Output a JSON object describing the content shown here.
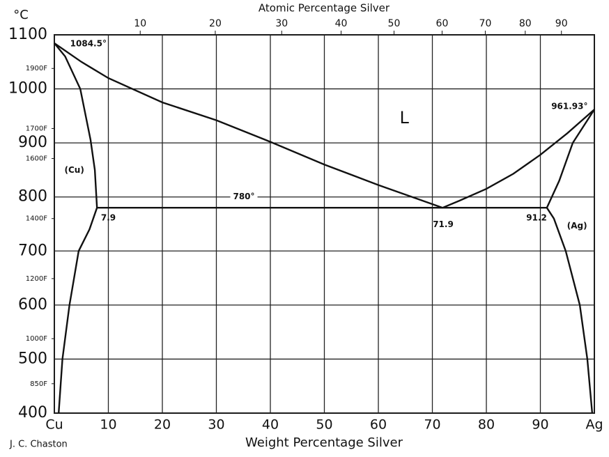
{
  "chart_data": {
    "type": "line",
    "ylabel": "°C",
    "xlabel": "Weight Percentage Silver",
    "x2label": "Atomic Percentage Silver",
    "credit": "J. C. Chaston",
    "xlim": [
      0,
      100
    ],
    "ylim": [
      400,
      1100
    ],
    "grid": true,
    "color": "#111111",
    "xticks": [
      {
        "value": 0,
        "label": "Cu"
      },
      10,
      20,
      30,
      40,
      50,
      60,
      70,
      80,
      90,
      {
        "value": 100,
        "label": "Ag"
      }
    ],
    "x2ticks": [
      {
        "value": 15.9,
        "label": "10"
      },
      {
        "value": 29.8,
        "label": "20"
      },
      {
        "value": 42.1,
        "label": "30"
      },
      {
        "value": 53.1,
        "label": "40"
      },
      {
        "value": 62.9,
        "label": "50"
      },
      {
        "value": 71.8,
        "label": "60"
      },
      {
        "value": 79.8,
        "label": "70"
      },
      {
        "value": 87.2,
        "label": "80"
      },
      {
        "value": 93.9,
        "label": "90"
      }
    ],
    "yticks": [
      400,
      500,
      600,
      700,
      800,
      900,
      1000,
      1100
    ],
    "yticks_fahrenheit": [
      {
        "value": 454.4,
        "label": "850F"
      },
      {
        "value": 537.8,
        "label": "1000F"
      },
      {
        "value": 648.9,
        "label": "1200F"
      },
      {
        "value": 760,
        "label": "1400F"
      },
      {
        "value": 871.1,
        "label": "1600F"
      },
      {
        "value": 926.7,
        "label": "1700F"
      },
      {
        "value": 1037.8,
        "label": "1900F"
      }
    ],
    "series": [
      {
        "x": [
          0,
          5,
          10,
          20,
          30,
          40,
          50,
          60,
          71.9
        ],
        "values": [
          1084.5,
          1050,
          1020,
          975,
          942,
          902,
          860,
          822,
          780
        ]
      },
      {
        "x": [
          71.9,
          75,
          80,
          85,
          90,
          95,
          100
        ],
        "values": [
          780,
          793,
          815,
          843,
          878,
          918,
          961.93
        ]
      },
      {
        "x": [
          0,
          2,
          4.8,
          6.7,
          7.5,
          7.9
        ],
        "values": [
          1084.5,
          1060,
          1000,
          906,
          850,
          780
        ]
      },
      {
        "x": [
          7.9,
          6.5,
          4.5,
          2.8,
          1.5,
          0.8
        ],
        "values": [
          780,
          740,
          700,
          600,
          500,
          400
        ]
      },
      {
        "x": [
          91.2,
          93.5,
          96,
          100
        ],
        "values": [
          780,
          830,
          900,
          961.93
        ]
      },
      {
        "x": [
          91.2,
          92.5,
          94.7,
          97.3,
          98.7,
          99.6
        ],
        "values": [
          780,
          760,
          700,
          600,
          500,
          400
        ]
      },
      {
        "x": [
          7.9,
          91.2
        ],
        "values": [
          780,
          780
        ]
      }
    ],
    "annotations": [
      {
        "text": "1084.5°",
        "x": 6.3,
        "y": 1083
      },
      {
        "text": "961.93°",
        "x": 95.4,
        "y": 967
      },
      {
        "text": "780°",
        "x": 35.1,
        "y": 800
      },
      {
        "text": "7.9",
        "x": 10,
        "y": 761
      },
      {
        "text": "71.9",
        "x": 72,
        "y": 749
      },
      {
        "text": "91.2",
        "x": 89.3,
        "y": 761
      },
      {
        "text": "L",
        "x": 64.8,
        "y": 945
      },
      {
        "text": "(Cu)",
        "x": 3.7,
        "y": 849
      },
      {
        "text": "(Ag)",
        "x": 96.8,
        "y": 746
      }
    ]
  }
}
